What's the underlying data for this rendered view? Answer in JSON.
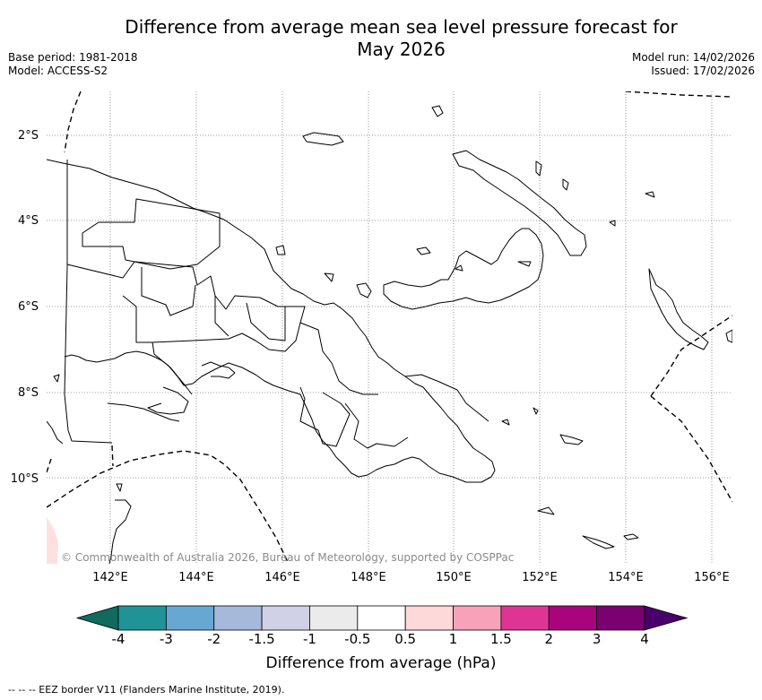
{
  "title": {
    "line1": "Difference from average mean sea level pressure forecast for",
    "line2": "May 2026"
  },
  "meta": {
    "base_period": "Base period: 1981-2018",
    "model": "Model: ACCESS-S2",
    "model_run": "Model run: 14/02/2026",
    "issued": "Issued: 17/02/2026"
  },
  "map": {
    "lat_labels": [
      "2°S",
      "4°S",
      "6°S",
      "8°S",
      "10°S"
    ],
    "lon_labels": [
      "142°E",
      "144°E",
      "146°E",
      "148°E",
      "150°E",
      "152°E",
      "154°E",
      "156°E"
    ],
    "copyright": "© Commonwealth of Australia 2026, Bureau of Meteorology, supported by COSPPac",
    "anomaly_fill_color": "#fde0df",
    "land_outline_color": "#000000",
    "gridline_color": "#808080"
  },
  "colorbar": {
    "label": "Difference from average (hPa)",
    "ticks": [
      "-4",
      "-3",
      "-2",
      "-1.5",
      "-1",
      "-0.5",
      "0.5",
      "1",
      "1.5",
      "2",
      "3",
      "4"
    ],
    "colors": [
      "#0e6b5e",
      "#1f9397",
      "#66a8d2",
      "#a4b9db",
      "#d0d0e6",
      "#ebebeb",
      "#ffffff",
      "#fdd9d9",
      "#f7a2b9",
      "#de3595",
      "#a9037d",
      "#7b0170",
      "#49006a"
    ]
  },
  "footnote": "--  --  -- EEZ border V11 (Flanders Marine Institute, 2019)."
}
